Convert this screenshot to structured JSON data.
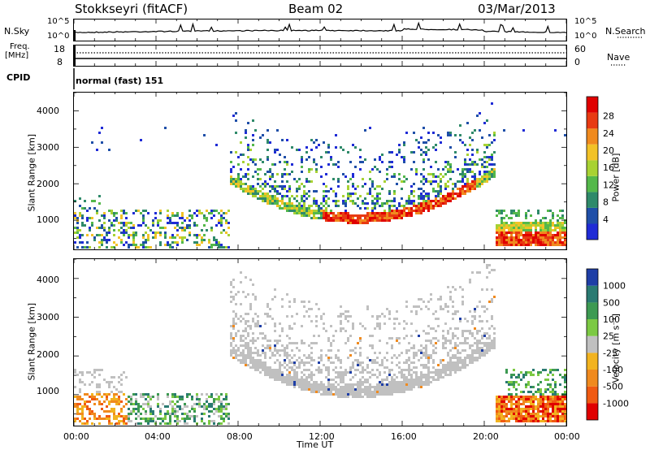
{
  "header": {
    "station": "Stokkseyri (fitACF)",
    "beam": "Beam 02",
    "date": "03/Mar/2013"
  },
  "noise_panel": {
    "left_label": "N.Sky",
    "left_ticks": [
      "10^5",
      "10^0"
    ],
    "right_label": "N.Search",
    "right_ticks": [
      "10^5",
      "10^0"
    ]
  },
  "freq_panel": {
    "left_label_1": "Freq.",
    "left_label_2": "[MHz]",
    "left_ticks": [
      "18",
      "8"
    ],
    "right_label": "Nave",
    "right_ticks": [
      "60",
      "0"
    ]
  },
  "cpid_panel": {
    "label": "CPID",
    "value": "normal (fast) 151"
  },
  "chart_data": [
    {
      "type": "heatmap",
      "name": "power",
      "ylabel": "Slant Range [km]",
      "yticks": [
        "1000",
        "2000",
        "3000",
        "4000"
      ],
      "ylim": [
        200,
        4500
      ],
      "xlim": [
        "00:00",
        "24:00"
      ],
      "colorbar_label": "Power [dB]",
      "colorbar_ticks": [
        "4",
        "8",
        "12",
        "16",
        "20",
        "24",
        "28"
      ],
      "colors": [
        "#1f2bd6",
        "#1f4fa8",
        "#2f8a6a",
        "#54b84a",
        "#a8d233",
        "#f2c227",
        "#f08a1e",
        "#e83a12",
        "#e00000"
      ]
    },
    {
      "type": "heatmap",
      "name": "velocity",
      "ylabel": "Slant Range [km]",
      "yticks": [
        "1000",
        "2000",
        "3000",
        "4000"
      ],
      "ylim": [
        200,
        4500
      ],
      "xlim": [
        "00:00",
        "24:00"
      ],
      "colorbar_label": "Velocity [m s⁻¹]",
      "colorbar_ticks": [
        "1000",
        "500",
        "100",
        "25",
        "-25",
        "-100",
        "-500",
        "-1000"
      ],
      "colors": [
        "#1e3ea6",
        "#2a7a72",
        "#3d9a52",
        "#7cc943",
        "#c0c0c0",
        "#f2b31f",
        "#f08a1e",
        "#f05a12",
        "#e00000"
      ]
    }
  ],
  "time_axis": {
    "label": "Time UT",
    "ticks": [
      "00:00",
      "04:00",
      "08:00",
      "12:00",
      "16:00",
      "20:00",
      "00:00"
    ]
  }
}
